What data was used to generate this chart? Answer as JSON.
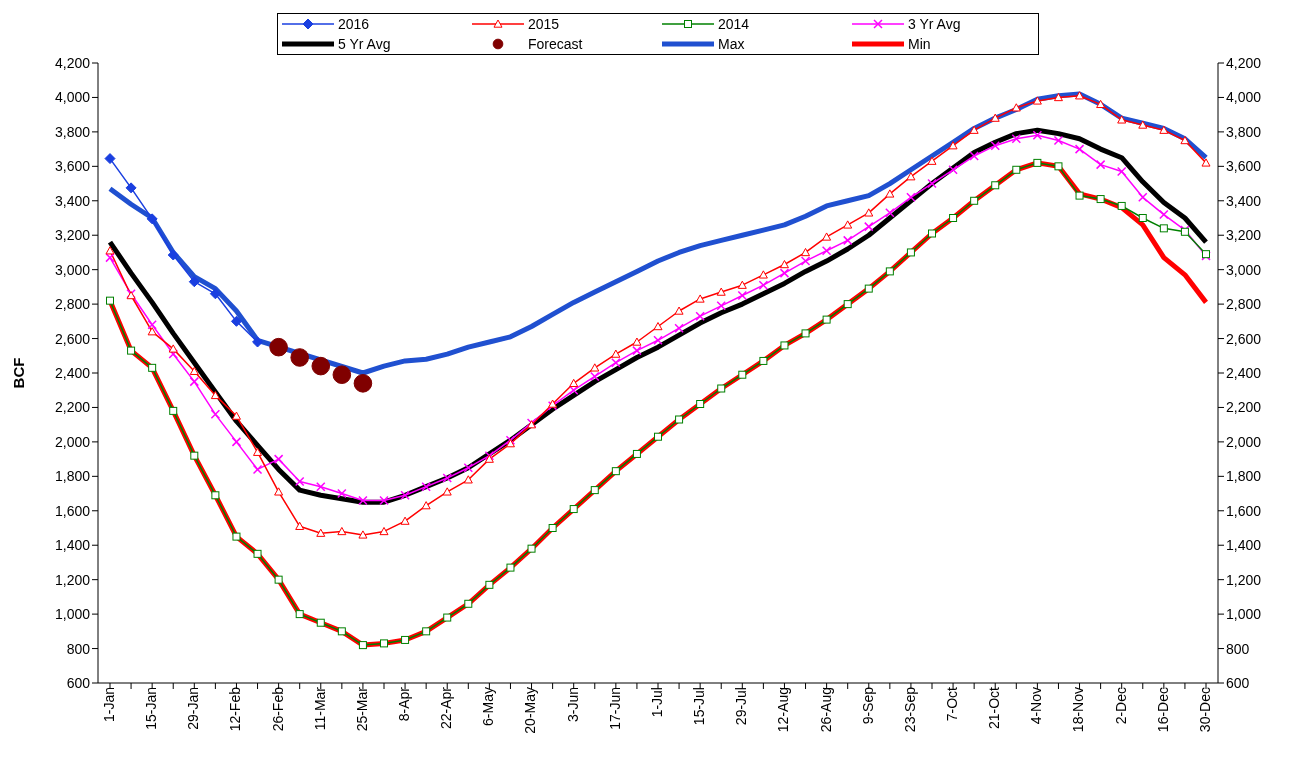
{
  "chart_data": {
    "type": "line",
    "ylabel": "BCF",
    "categories": [
      "1-Jan",
      null,
      "15-Jan",
      null,
      "29-Jan",
      null,
      "12-Feb",
      null,
      "26-Feb",
      null,
      "11-Mar",
      null,
      "25-Mar",
      null,
      "8-Apr",
      null,
      "22-Apr",
      null,
      "6-May",
      null,
      "20-May",
      null,
      "3-Jun",
      null,
      "17-Jun",
      null,
      "1-Jul",
      null,
      "15-Jul",
      null,
      "29-Jul",
      null,
      "12-Aug",
      null,
      "26-Aug",
      null,
      "9-Sep",
      null,
      "23-Sep",
      null,
      "7-Oct",
      null,
      "21-Oct",
      null,
      "4-Nov",
      null,
      "18-Nov",
      null,
      "2-Dec",
      null,
      "16-Dec",
      null,
      "30-Dec"
    ],
    "series": [
      {
        "name": "2016",
        "color": "#1a3fe0",
        "marker": "diamond",
        "values": [
          3645,
          3475,
          3295,
          3085,
          2930,
          2860,
          2700,
          2580,
          null,
          null,
          null,
          null,
          null,
          null,
          null,
          null,
          null,
          null,
          null,
          null,
          null,
          null,
          null,
          null,
          null,
          null,
          null,
          null,
          null,
          null,
          null,
          null,
          null,
          null,
          null,
          null,
          null,
          null,
          null,
          null,
          null,
          null,
          null,
          null,
          null,
          null,
          null,
          null,
          null,
          null,
          null,
          null,
          null
        ]
      },
      {
        "name": "2015",
        "color": "#ff0000",
        "marker": "triangle",
        "values": [
          3110,
          2850,
          2640,
          2540,
          2410,
          2270,
          2150,
          1940,
          1710,
          1510,
          1470,
          1480,
          1460,
          1480,
          1540,
          1630,
          1710,
          1780,
          1900,
          1990,
          2100,
          2220,
          2340,
          2430,
          2510,
          2580,
          2670,
          2760,
          2830,
          2870,
          2910,
          2970,
          3030,
          3100,
          3190,
          3260,
          3330,
          3440,
          3540,
          3630,
          3720,
          3810,
          3880,
          3940,
          3980,
          4000,
          4010,
          3960,
          3870,
          3840,
          3810,
          3750,
          3620
        ]
      },
      {
        "name": "2014",
        "color": "#008000",
        "marker": "square",
        "values": [
          2820,
          2530,
          2430,
          2180,
          1920,
          1690,
          1450,
          1350,
          1200,
          1000,
          950,
          900,
          820,
          830,
          850,
          900,
          980,
          1060,
          1170,
          1270,
          1380,
          1500,
          1610,
          1720,
          1830,
          1930,
          2030,
          2130,
          2220,
          2310,
          2390,
          2470,
          2560,
          2630,
          2710,
          2800,
          2890,
          2990,
          3100,
          3210,
          3300,
          3400,
          3490,
          3580,
          3620,
          3600,
          3430,
          3410,
          3370,
          3300,
          3240,
          3220,
          3090
        ]
      },
      {
        "name": "3 Yr Avg",
        "color": "#ff00ff",
        "marker": "cross",
        "values": [
          3070,
          2860,
          2680,
          2510,
          2350,
          2160,
          2000,
          1840,
          1900,
          1770,
          1740,
          1700,
          1660,
          1660,
          1690,
          1740,
          1790,
          1850,
          1920,
          2010,
          2110,
          2210,
          2300,
          2380,
          2460,
          2530,
          2590,
          2660,
          2730,
          2790,
          2850,
          2910,
          2980,
          3050,
          3110,
          3170,
          3250,
          3330,
          3420,
          3500,
          3580,
          3660,
          3720,
          3760,
          3780,
          3750,
          3700,
          3610,
          3570,
          3420,
          3320,
          3230,
          3080
        ]
      },
      {
        "name": "5 Yr Avg",
        "color": "#000000",
        "marker": "none",
        "values": [
          3160,
          2980,
          2810,
          2630,
          2460,
          2290,
          2120,
          1980,
          1840,
          1720,
          1690,
          1670,
          1650,
          1650,
          1690,
          1740,
          1790,
          1850,
          1930,
          2010,
          2100,
          2190,
          2270,
          2350,
          2420,
          2490,
          2550,
          2620,
          2690,
          2750,
          2800,
          2860,
          2920,
          2990,
          3050,
          3120,
          3200,
          3300,
          3400,
          3500,
          3590,
          3680,
          3740,
          3790,
          3810,
          3790,
          3760,
          3700,
          3650,
          3510,
          3390,
          3300,
          3160
        ]
      },
      {
        "name": "Forecast",
        "type": "scatter",
        "color": "#800000",
        "marker": "circle",
        "values": [
          null,
          null,
          null,
          null,
          null,
          null,
          null,
          null,
          2550,
          2490,
          2440,
          2390,
          2340,
          null,
          null,
          null,
          null,
          null,
          null,
          null,
          null,
          null,
          null,
          null,
          null,
          null,
          null,
          null,
          null,
          null,
          null,
          null,
          null,
          null,
          null,
          null,
          null,
          null,
          null,
          null,
          null,
          null,
          null,
          null,
          null,
          null,
          null,
          null,
          null,
          null,
          null,
          null,
          null
        ]
      },
      {
        "name": "Max",
        "color": "#2050d0",
        "marker": "none",
        "values": [
          3470,
          3380,
          3300,
          3100,
          2960,
          2890,
          2760,
          2590,
          null,
          null,
          null,
          null,
          2400,
          2440,
          2470,
          2480,
          2510,
          2550,
          2580,
          2610,
          2670,
          2740,
          2810,
          2870,
          2930,
          2990,
          3050,
          3100,
          3140,
          3170,
          3200,
          3230,
          3260,
          3310,
          3370,
          3400,
          3430,
          3500,
          3580,
          3660,
          3740,
          3820,
          3880,
          3930,
          3990,
          4010,
          4020,
          3960,
          3880,
          3850,
          3820,
          3760,
          3650
        ]
      },
      {
        "name": "Min",
        "color": "#ff0000",
        "marker": "none",
        "values": [
          2820,
          2530,
          2430,
          2180,
          1920,
          1690,
          1450,
          1350,
          1200,
          1000,
          950,
          900,
          820,
          830,
          850,
          900,
          980,
          1060,
          1170,
          1270,
          1380,
          1500,
          1610,
          1720,
          1830,
          1930,
          2030,
          2130,
          2220,
          2310,
          2390,
          2470,
          2560,
          2630,
          2710,
          2800,
          2890,
          2990,
          3100,
          3210,
          3300,
          3400,
          3490,
          3580,
          3620,
          3600,
          3440,
          3410,
          3360,
          3260,
          3070,
          2970,
          2810
        ]
      }
    ],
    "ylim": [
      600,
      4200
    ],
    "yticks": [
      600,
      800,
      {
        "value": 1000,
        "label": "1,000"
      },
      {
        "value": 1200,
        "label": "1,200"
      },
      {
        "value": 1400,
        "label": "1,400"
      },
      {
        "value": 1600,
        "label": "1,600"
      },
      {
        "value": 1800,
        "label": "1,800"
      },
      {
        "value": 2000,
        "label": "2,000"
      },
      {
        "value": 2200,
        "label": "2,200"
      },
      {
        "value": 2400,
        "label": "2,400"
      },
      {
        "value": 2600,
        "label": "2,600"
      },
      {
        "value": 2800,
        "label": "2,800"
      },
      {
        "value": 3000,
        "label": "3,000"
      },
      {
        "value": 3200,
        "label": "3,200"
      },
      {
        "value": 3400,
        "label": "3,400"
      },
      {
        "value": 3600,
        "label": "3,600"
      },
      {
        "value": 3800,
        "label": "3,800"
      },
      {
        "value": 4000,
        "label": "4,000"
      },
      {
        "value": 4200,
        "label": "4,200"
      }
    ],
    "y2lim": [
      600,
      4200
    ],
    "y2ticks": [
      600,
      800,
      {
        "value": 1000,
        "label": "1,000"
      },
      {
        "value": 1200,
        "label": "1,200"
      },
      {
        "value": 1400,
        "label": "1,400"
      },
      {
        "value": 1600,
        "label": "1,600"
      },
      {
        "value": 1800,
        "label": "1,800"
      },
      {
        "value": 2000,
        "label": "2,000"
      },
      {
        "value": 2200,
        "label": "2,200"
      },
      {
        "value": 2400,
        "label": "2,400"
      },
      {
        "value": 2600,
        "label": "2,600"
      },
      {
        "value": 2800,
        "label": "2,800"
      },
      {
        "value": 3000,
        "label": "3,000"
      },
      {
        "value": 3200,
        "label": "3,200"
      },
      {
        "value": 3400,
        "label": "3,400"
      },
      {
        "value": 3600,
        "label": "3,600"
      },
      {
        "value": 3800,
        "label": "3,800"
      },
      {
        "value": 4000,
        "label": "4,000"
      },
      {
        "value": 4200,
        "label": "4,200"
      }
    ],
    "legend": "top"
  }
}
